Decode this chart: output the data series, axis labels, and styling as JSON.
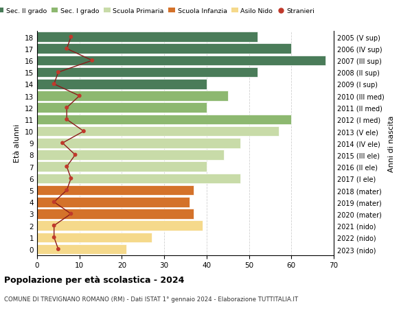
{
  "ages": [
    18,
    17,
    16,
    15,
    14,
    13,
    12,
    11,
    10,
    9,
    8,
    7,
    6,
    5,
    4,
    3,
    2,
    1,
    0
  ],
  "years_labels": [
    "2005 (V sup)",
    "2006 (IV sup)",
    "2007 (III sup)",
    "2008 (II sup)",
    "2009 (I sup)",
    "2010 (III med)",
    "2011 (II med)",
    "2012 (I med)",
    "2013 (V ele)",
    "2014 (IV ele)",
    "2015 (III ele)",
    "2016 (II ele)",
    "2017 (I ele)",
    "2018 (mater)",
    "2019 (mater)",
    "2020 (mater)",
    "2021 (nido)",
    "2022 (nido)",
    "2023 (nido)"
  ],
  "bar_values": [
    52,
    60,
    68,
    52,
    40,
    45,
    40,
    60,
    57,
    48,
    44,
    40,
    48,
    37,
    36,
    37,
    39,
    27,
    21
  ],
  "bar_colors": [
    "#4a7c59",
    "#4a7c59",
    "#4a7c59",
    "#4a7c59",
    "#4a7c59",
    "#8db870",
    "#8db870",
    "#8db870",
    "#c8dba8",
    "#c8dba8",
    "#c8dba8",
    "#c8dba8",
    "#c8dba8",
    "#d4722a",
    "#d4722a",
    "#d4722a",
    "#f5d98b",
    "#f5d98b",
    "#f5d98b"
  ],
  "stranieri_values": [
    8,
    7,
    13,
    5,
    4,
    10,
    7,
    7,
    11,
    6,
    9,
    7,
    8,
    7,
    4,
    8,
    4,
    4,
    5
  ],
  "title": "Popolazione per età scolastica - 2024",
  "subtitle": "COMUNE DI TREVIGNANO ROMANO (RM) - Dati ISTAT 1° gennaio 2024 - Elaborazione TUTTITALIA.IT",
  "ylabel": "Età alunni",
  "right_ylabel": "Anni di nascita",
  "xlim": [
    0,
    70
  ],
  "xticks": [
    0,
    10,
    20,
    30,
    40,
    50,
    60,
    70
  ],
  "legend_labels": [
    "Sec. II grado",
    "Sec. I grado",
    "Scuola Primaria",
    "Scuola Infanzia",
    "Asilo Nido",
    "Stranieri"
  ],
  "legend_colors_patch": [
    "#4a7c59",
    "#8db870",
    "#c8dba8",
    "#d4722a",
    "#f5d98b"
  ],
  "stranieri_line_color": "#8b1a1a",
  "stranieri_dot_color": "#c0392b",
  "bar_height": 0.85,
  "bg_color": "#ffffff",
  "grid_color": "#d0d0d0"
}
